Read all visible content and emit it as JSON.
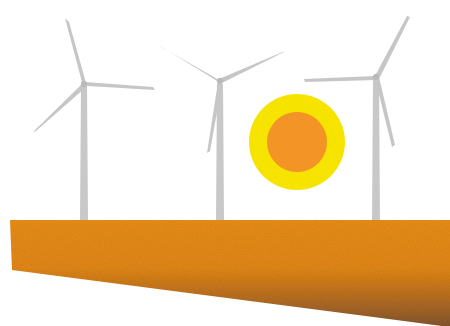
{
  "scene": {
    "subject": "wind-farm-with-sun",
    "turbine_count": 3,
    "colors": {
      "background": "#ffffff",
      "turbine": "#c8c8c8",
      "turbine_shadow": "#b3b3b3",
      "sun_core": "#f39427",
      "sun_ring": "#f6e400",
      "ground_top": "#f0921c",
      "ground_mid": "#d97f14",
      "ground_bottom": "#8a5a33"
    }
  }
}
